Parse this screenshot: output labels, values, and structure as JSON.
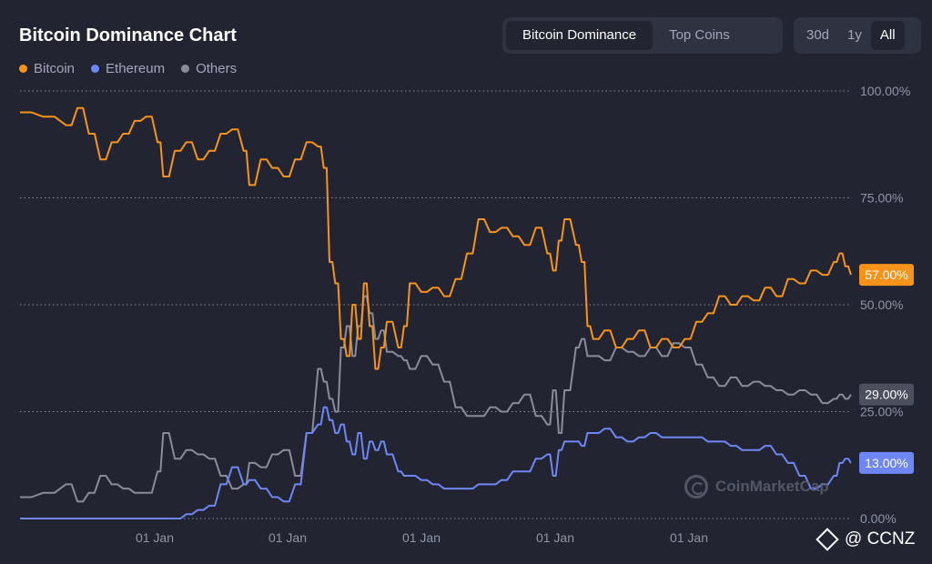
{
  "header": {
    "title": "Bitcoin Dominance Chart"
  },
  "tabs": [
    {
      "label": "Bitcoin Dominance",
      "active": true
    },
    {
      "label": "Top Coins",
      "active": false
    }
  ],
  "ranges": [
    {
      "label": "30d",
      "active": false
    },
    {
      "label": "1y",
      "active": false
    },
    {
      "label": "All",
      "active": true
    }
  ],
  "watermark": "CoinMarketCap",
  "credit": "@ CCNZ",
  "colors": {
    "bitcoin": "#f7931a",
    "ethereum": "#6f86f5",
    "others": "#8a8d99",
    "grid": "#8a8d99",
    "background": "#222531"
  },
  "chart_data": {
    "type": "line",
    "title": "Bitcoin Dominance Chart",
    "ylim": [
      0,
      100
    ],
    "y_ticks": [
      "0.00%",
      "25.00%",
      "50.00%",
      "75.00%",
      "100.00%"
    ],
    "x_ticks": [
      "01 Jan",
      "01 Jan",
      "01 Jan",
      "01 Jan",
      "01 Jan"
    ],
    "legend_position": "top-left",
    "grid": true,
    "series": [
      {
        "name": "Bitcoin",
        "color": "#f7931a",
        "last_label": "57.00%",
        "points": [
          [
            0,
            95
          ],
          [
            4,
            94
          ],
          [
            8,
            92
          ],
          [
            10,
            96
          ],
          [
            12,
            90
          ],
          [
            14,
            84
          ],
          [
            16,
            88
          ],
          [
            18,
            90
          ],
          [
            20,
            93
          ],
          [
            22,
            94
          ],
          [
            24,
            88
          ],
          [
            25,
            80
          ],
          [
            27,
            86
          ],
          [
            29,
            88
          ],
          [
            31,
            84
          ],
          [
            33,
            86
          ],
          [
            35,
            90
          ],
          [
            37,
            91
          ],
          [
            39,
            86
          ],
          [
            40,
            78
          ],
          [
            42,
            84
          ],
          [
            44,
            82
          ],
          [
            46,
            80
          ],
          [
            48,
            84
          ],
          [
            50,
            88
          ],
          [
            52,
            87
          ],
          [
            53,
            82
          ],
          [
            54,
            60
          ],
          [
            55,
            55
          ],
          [
            56,
            42
          ],
          [
            57,
            38
          ],
          [
            58,
            50
          ],
          [
            59,
            42
          ],
          [
            60,
            55
          ],
          [
            61,
            45
          ],
          [
            62,
            35
          ],
          [
            63,
            40
          ],
          [
            64,
            46
          ],
          [
            66,
            40
          ],
          [
            67,
            45
          ],
          [
            68,
            55
          ],
          [
            70,
            53
          ],
          [
            72,
            54
          ],
          [
            74,
            52
          ],
          [
            76,
            56
          ],
          [
            78,
            62
          ],
          [
            80,
            70
          ],
          [
            82,
            67
          ],
          [
            84,
            68
          ],
          [
            86,
            66
          ],
          [
            88,
            64
          ],
          [
            90,
            68
          ],
          [
            92,
            62
          ],
          [
            93,
            58
          ],
          [
            94,
            65
          ],
          [
            95,
            70
          ],
          [
            97,
            64
          ],
          [
            98,
            60
          ],
          [
            99,
            45
          ],
          [
            100,
            42
          ],
          [
            102,
            44
          ],
          [
            104,
            40
          ],
          [
            106,
            42
          ],
          [
            108,
            44
          ],
          [
            110,
            40
          ],
          [
            112,
            42
          ],
          [
            114,
            40
          ],
          [
            116,
            42
          ],
          [
            118,
            46
          ],
          [
            120,
            48
          ],
          [
            122,
            52
          ],
          [
            124,
            50
          ],
          [
            126,
            52
          ],
          [
            128,
            51
          ],
          [
            130,
            54
          ],
          [
            132,
            52
          ],
          [
            134,
            56
          ],
          [
            136,
            55
          ],
          [
            138,
            58
          ],
          [
            140,
            57
          ],
          [
            142,
            60
          ],
          [
            143,
            62
          ],
          [
            144,
            59
          ],
          [
            145,
            57
          ]
        ]
      },
      {
        "name": "Ethereum",
        "color": "#6f86f5",
        "last_label": "13.00%",
        "points": [
          [
            0,
            0
          ],
          [
            4,
            0
          ],
          [
            8,
            0
          ],
          [
            10,
            0
          ],
          [
            12,
            0
          ],
          [
            14,
            0
          ],
          [
            16,
            0
          ],
          [
            18,
            0
          ],
          [
            20,
            0
          ],
          [
            22,
            0
          ],
          [
            24,
            0
          ],
          [
            25,
            0
          ],
          [
            27,
            0
          ],
          [
            29,
            1
          ],
          [
            31,
            2
          ],
          [
            33,
            3
          ],
          [
            35,
            8
          ],
          [
            37,
            12
          ],
          [
            39,
            8
          ],
          [
            40,
            9
          ],
          [
            42,
            7
          ],
          [
            44,
            5
          ],
          [
            46,
            4
          ],
          [
            48,
            8
          ],
          [
            50,
            20
          ],
          [
            52,
            22
          ],
          [
            53,
            26
          ],
          [
            54,
            23
          ],
          [
            55,
            20
          ],
          [
            56,
            22
          ],
          [
            57,
            18
          ],
          [
            58,
            15
          ],
          [
            59,
            20
          ],
          [
            60,
            14
          ],
          [
            61,
            18
          ],
          [
            62,
            16
          ],
          [
            63,
            18
          ],
          [
            64,
            15
          ],
          [
            66,
            11
          ],
          [
            67,
            10
          ],
          [
            68,
            10
          ],
          [
            70,
            9
          ],
          [
            72,
            8
          ],
          [
            74,
            7
          ],
          [
            76,
            7
          ],
          [
            78,
            7
          ],
          [
            80,
            8
          ],
          [
            82,
            8
          ],
          [
            84,
            9
          ],
          [
            86,
            11
          ],
          [
            88,
            11
          ],
          [
            90,
            14
          ],
          [
            92,
            15
          ],
          [
            93,
            10
          ],
          [
            94,
            16
          ],
          [
            95,
            18
          ],
          [
            97,
            18
          ],
          [
            98,
            17
          ],
          [
            99,
            20
          ],
          [
            100,
            20
          ],
          [
            102,
            21
          ],
          [
            104,
            19
          ],
          [
            106,
            18
          ],
          [
            108,
            19
          ],
          [
            110,
            20
          ],
          [
            112,
            19
          ],
          [
            114,
            19
          ],
          [
            116,
            19
          ],
          [
            118,
            19
          ],
          [
            120,
            18
          ],
          [
            122,
            18
          ],
          [
            124,
            17
          ],
          [
            126,
            16
          ],
          [
            128,
            16
          ],
          [
            130,
            17
          ],
          [
            132,
            15
          ],
          [
            134,
            13
          ],
          [
            136,
            10
          ],
          [
            138,
            7
          ],
          [
            140,
            8
          ],
          [
            142,
            10
          ],
          [
            143,
            13
          ],
          [
            144,
            14
          ],
          [
            145,
            13
          ]
        ]
      },
      {
        "name": "Others",
        "color": "#8a8d99",
        "last_label": "29.00%",
        "points": [
          [
            0,
            5
          ],
          [
            4,
            6
          ],
          [
            8,
            8
          ],
          [
            10,
            4
          ],
          [
            12,
            6
          ],
          [
            14,
            10
          ],
          [
            16,
            8
          ],
          [
            18,
            7
          ],
          [
            20,
            6
          ],
          [
            22,
            6
          ],
          [
            24,
            11
          ],
          [
            25,
            20
          ],
          [
            27,
            14
          ],
          [
            29,
            16
          ],
          [
            31,
            15
          ],
          [
            33,
            14
          ],
          [
            35,
            10
          ],
          [
            37,
            7
          ],
          [
            39,
            8
          ],
          [
            40,
            13
          ],
          [
            42,
            12
          ],
          [
            44,
            15
          ],
          [
            46,
            16
          ],
          [
            48,
            10
          ],
          [
            50,
            20
          ],
          [
            52,
            35
          ],
          [
            53,
            32
          ],
          [
            54,
            28
          ],
          [
            55,
            25
          ],
          [
            56,
            40
          ],
          [
            57,
            45
          ],
          [
            58,
            38
          ],
          [
            59,
            45
          ],
          [
            60,
            52
          ],
          [
            61,
            48
          ],
          [
            62,
            42
          ],
          [
            63,
            44
          ],
          [
            64,
            39
          ],
          [
            66,
            38
          ],
          [
            67,
            37
          ],
          [
            68,
            35
          ],
          [
            70,
            38
          ],
          [
            72,
            36
          ],
          [
            74,
            32
          ],
          [
            76,
            26
          ],
          [
            78,
            24
          ],
          [
            80,
            24
          ],
          [
            82,
            26
          ],
          [
            84,
            25
          ],
          [
            86,
            27
          ],
          [
            88,
            29
          ],
          [
            90,
            24
          ],
          [
            92,
            22
          ],
          [
            93,
            30
          ],
          [
            94,
            20
          ],
          [
            95,
            30
          ],
          [
            97,
            40
          ],
          [
            98,
            42
          ],
          [
            99,
            38
          ],
          [
            100,
            38
          ],
          [
            102,
            37
          ],
          [
            104,
            40
          ],
          [
            106,
            39
          ],
          [
            108,
            38
          ],
          [
            110,
            40
          ],
          [
            112,
            38
          ],
          [
            114,
            41
          ],
          [
            116,
            40
          ],
          [
            118,
            36
          ],
          [
            120,
            33
          ],
          [
            122,
            31
          ],
          [
            124,
            33
          ],
          [
            126,
            31
          ],
          [
            128,
            32
          ],
          [
            130,
            31
          ],
          [
            132,
            30
          ],
          [
            134,
            29
          ],
          [
            136,
            30
          ],
          [
            138,
            29
          ],
          [
            140,
            27
          ],
          [
            142,
            28
          ],
          [
            143,
            29
          ],
          [
            144,
            28
          ],
          [
            145,
            29
          ]
        ]
      }
    ]
  }
}
